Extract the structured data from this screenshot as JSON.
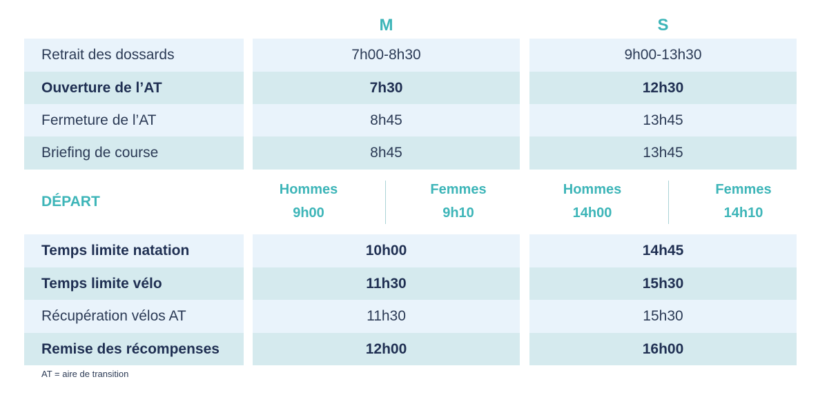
{
  "headers": {
    "m": "M",
    "s": "S"
  },
  "rows_top": [
    {
      "label": "Retrait des dossards",
      "m": "7h00-8h30",
      "s": "9h00-13h30"
    },
    {
      "label": "Ouverture de l’AT",
      "m": "7h30",
      "s": "12h30"
    },
    {
      "label": "Fermeture de l’AT",
      "m": "8h45",
      "s": "13h45"
    },
    {
      "label": "Briefing de course",
      "m": "8h45",
      "s": "13h45"
    }
  ],
  "depart": {
    "label": "DÉPART",
    "m": [
      {
        "who": "Hommes",
        "time": "9h00"
      },
      {
        "who": "Femmes",
        "time": "9h10"
      }
    ],
    "s": [
      {
        "who": "Hommes",
        "time": "14h00"
      },
      {
        "who": "Femmes",
        "time": "14h10"
      }
    ]
  },
  "rows_bottom": [
    {
      "label": "Temps limite natation",
      "m": "10h00",
      "s": "14h45"
    },
    {
      "label": "Temps limite vélo",
      "m": "11h30",
      "s": "15h30"
    },
    {
      "label": "Récupération vélos AT",
      "m": "11h30",
      "s": "15h30"
    },
    {
      "label": "Remise des récompenses",
      "m": "12h00",
      "s": "16h00"
    }
  ],
  "footnote": "AT = aire de transition",
  "colors": {
    "light": "#e9f3fb",
    "teal": "#d5eaee",
    "accent": "#3db5b8",
    "navy": "#1f2f52"
  }
}
